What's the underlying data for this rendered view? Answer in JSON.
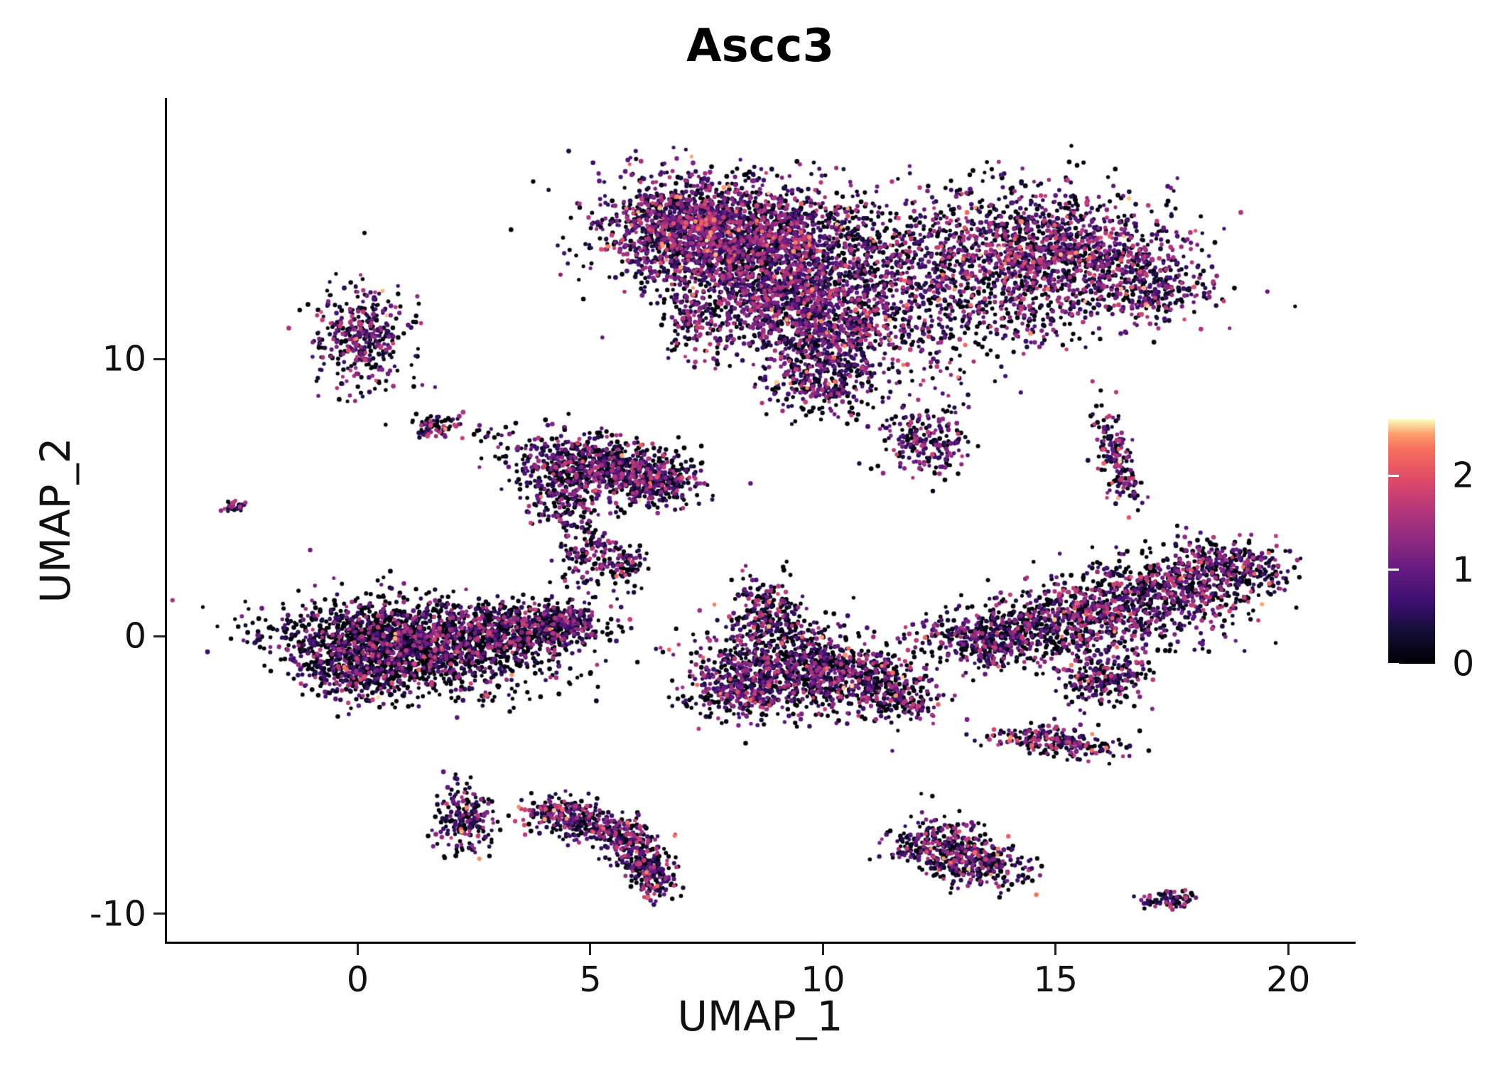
{
  "chart_data": {
    "type": "scatter",
    "title": "Ascc3",
    "xlabel": "UMAP_1",
    "ylabel": "UMAP_2",
    "xlim": [
      -4.1,
      21.4
    ],
    "ylim": [
      -11.0,
      19.4
    ],
    "x_ticks": [
      0,
      5,
      10,
      15,
      20
    ],
    "y_ticks": [
      -10,
      0,
      10
    ],
    "grid": false,
    "legend_position": "right",
    "background_color": "#ffffff",
    "axis_color": "#000000",
    "text_color": "#111111",
    "point_radius": 3,
    "seed": 20240613,
    "colorbar": {
      "colormap": "magma",
      "vmin": 0,
      "vmax": 2.6,
      "tick_labels": [
        "0",
        "1",
        "2"
      ],
      "tick_values": [
        0,
        1,
        2
      ],
      "stops": [
        {
          "t": 0.0,
          "c": "#000004"
        },
        {
          "t": 0.13,
          "c": "#140e36"
        },
        {
          "t": 0.25,
          "c": "#3b0f70"
        },
        {
          "t": 0.38,
          "c": "#641a80"
        },
        {
          "t": 0.5,
          "c": "#8c2981"
        },
        {
          "t": 0.63,
          "c": "#b5367a"
        },
        {
          "t": 0.75,
          "c": "#de4968"
        },
        {
          "t": 0.88,
          "c": "#f7705c"
        },
        {
          "t": 0.94,
          "c": "#fe9f6d"
        },
        {
          "t": 1.0,
          "c": "#fcfdbf"
        }
      ]
    },
    "clusters": [
      {
        "name": "top-main",
        "cx": 8.2,
        "cy": 14.3,
        "sx": 1.35,
        "sy": 1.05,
        "n": 2100,
        "p0": 0.34,
        "hi": 0.05,
        "rot": -15
      },
      {
        "name": "top-left-lobe",
        "cx": 6.9,
        "cy": 15.0,
        "sx": 0.8,
        "sy": 0.7,
        "n": 480,
        "p0": 0.34,
        "hi": 0.04,
        "rot": 0
      },
      {
        "name": "top-lower-mid",
        "cx": 9.3,
        "cy": 12.0,
        "sx": 1.0,
        "sy": 0.95,
        "n": 850,
        "p0": 0.35,
        "hi": 0.05,
        "rot": 0
      },
      {
        "name": "top-tail-upper",
        "cx": 10.2,
        "cy": 10.6,
        "sx": 0.7,
        "sy": 0.8,
        "n": 380,
        "p0": 0.36,
        "hi": 0.04,
        "rot": 0
      },
      {
        "name": "top-tail-lower",
        "cx": 9.8,
        "cy": 9.2,
        "sx": 0.5,
        "sy": 0.6,
        "n": 200,
        "p0": 0.36,
        "hi": 0.04,
        "rot": 0
      },
      {
        "name": "top-bridge-right",
        "cx": 11.2,
        "cy": 13.2,
        "sx": 0.95,
        "sy": 1.15,
        "n": 420,
        "p0": 0.4,
        "hi": 0.04,
        "rot": 0
      },
      {
        "name": "top-left-tail",
        "cx": 7.3,
        "cy": 11.6,
        "sx": 0.4,
        "sy": 0.85,
        "n": 160,
        "p0": 0.36,
        "hi": 0.04,
        "rot": 0
      },
      {
        "name": "mid-right-small",
        "cx": 12.2,
        "cy": 7.0,
        "sx": 0.45,
        "sy": 0.65,
        "n": 210,
        "p0": 0.36,
        "hi": 0.05,
        "rot": 0
      },
      {
        "name": "topright-main",
        "cx": 14.6,
        "cy": 13.9,
        "sx": 1.5,
        "sy": 1.15,
        "n": 1450,
        "p0": 0.38,
        "hi": 0.05,
        "rot": -10
      },
      {
        "name": "topright-east",
        "cx": 16.9,
        "cy": 12.7,
        "sx": 0.6,
        "sy": 0.7,
        "n": 300,
        "p0": 0.36,
        "hi": 0.06,
        "rot": 0
      },
      {
        "name": "topright-south-sparse",
        "cx": 13.6,
        "cy": 11.5,
        "sx": 1.2,
        "sy": 0.65,
        "n": 240,
        "p0": 0.42,
        "hi": 0.04,
        "rot": 0
      },
      {
        "name": "left-upper-blob",
        "cx": 0.1,
        "cy": 10.8,
        "sx": 0.5,
        "sy": 0.95,
        "n": 380,
        "p0": 0.44,
        "hi": 0.03,
        "rot": 0
      },
      {
        "name": "small-left-mid",
        "cx": 1.7,
        "cy": 7.6,
        "sx": 0.28,
        "sy": 0.22,
        "n": 70,
        "p0": 0.4,
        "hi": 0.06,
        "rot": 0
      },
      {
        "name": "small-left-mid-trail",
        "cx": 2.6,
        "cy": 7.3,
        "sx": 0.5,
        "sy": 0.15,
        "n": 18,
        "p0": 0.55,
        "hi": 0.03,
        "rot": 0
      },
      {
        "name": "far-left-dot",
        "cx": -2.65,
        "cy": 4.7,
        "sx": 0.13,
        "sy": 0.13,
        "n": 28,
        "p0": 0.4,
        "hi": 0.1,
        "rot": 0
      },
      {
        "name": "center-main",
        "cx": 5.2,
        "cy": 6.2,
        "sx": 0.95,
        "sy": 0.52,
        "n": 720,
        "p0": 0.5,
        "hi": 0.03,
        "rot": -8
      },
      {
        "name": "center-east",
        "cx": 6.4,
        "cy": 5.5,
        "sx": 0.45,
        "sy": 0.45,
        "n": 260,
        "p0": 0.46,
        "hi": 0.04,
        "rot": 0
      },
      {
        "name": "center-west",
        "cx": 4.3,
        "cy": 5.0,
        "sx": 0.35,
        "sy": 0.55,
        "n": 160,
        "p0": 0.5,
        "hi": 0.03,
        "rot": 0
      },
      {
        "name": "center-tail-upper",
        "cx": 4.9,
        "cy": 3.0,
        "sx": 0.3,
        "sy": 0.65,
        "n": 140,
        "p0": 0.5,
        "hi": 0.03,
        "rot": 0
      },
      {
        "name": "center-tail-lower",
        "cx": 5.7,
        "cy": 2.5,
        "sx": 0.25,
        "sy": 0.4,
        "n": 90,
        "p0": 0.5,
        "hi": 0.03,
        "rot": 0
      },
      {
        "name": "bottomleft-main",
        "cx": 1.1,
        "cy": -0.3,
        "sx": 1.5,
        "sy": 0.78,
        "n": 1900,
        "p0": 0.62,
        "hi": 0.015,
        "rot": -8
      },
      {
        "name": "bottomleft-east",
        "cx": 3.4,
        "cy": 0.3,
        "sx": 0.9,
        "sy": 0.45,
        "n": 520,
        "p0": 0.6,
        "hi": 0.02,
        "rot": 0
      },
      {
        "name": "bottomleft-tip",
        "cx": 4.5,
        "cy": 0.5,
        "sx": 0.3,
        "sy": 0.3,
        "n": 130,
        "p0": 0.5,
        "hi": 0.03,
        "rot": 0
      },
      {
        "name": "bottomleft-south",
        "cx": 0.2,
        "cy": -1.4,
        "sx": 0.7,
        "sy": 0.45,
        "n": 300,
        "p0": 0.62,
        "hi": 0.015,
        "rot": 0
      },
      {
        "name": "bottommid-north",
        "cx": 8.8,
        "cy": 0.7,
        "sx": 0.45,
        "sy": 0.8,
        "n": 260,
        "p0": 0.46,
        "hi": 0.04,
        "rot": 0
      },
      {
        "name": "bottommid-main",
        "cx": 9.3,
        "cy": -1.2,
        "sx": 1.05,
        "sy": 0.8,
        "n": 720,
        "p0": 0.46,
        "hi": 0.05,
        "rot": 0
      },
      {
        "name": "bottommid-west",
        "cx": 8.2,
        "cy": -1.9,
        "sx": 0.55,
        "sy": 0.55,
        "n": 260,
        "p0": 0.44,
        "hi": 0.05,
        "rot": 0
      },
      {
        "name": "bottommid-east",
        "cx": 10.6,
        "cy": -1.4,
        "sx": 0.75,
        "sy": 0.55,
        "n": 320,
        "p0": 0.46,
        "hi": 0.04,
        "rot": 0
      },
      {
        "name": "bottommid-bridge",
        "cx": 11.6,
        "cy": -2.3,
        "sx": 0.5,
        "sy": 0.45,
        "n": 160,
        "p0": 0.5,
        "hi": 0.03,
        "rot": 0
      },
      {
        "name": "right-band-1",
        "cx": 13.6,
        "cy": -0.3,
        "sx": 0.5,
        "sy": 0.5,
        "n": 250,
        "p0": 0.46,
        "hi": 0.04,
        "rot": 0
      },
      {
        "name": "right-band-2",
        "cx": 14.9,
        "cy": 0.2,
        "sx": 0.8,
        "sy": 0.5,
        "n": 370,
        "p0": 0.46,
        "hi": 0.04,
        "rot": -20
      },
      {
        "name": "right-band-3",
        "cx": 16.2,
        "cy": 0.9,
        "sx": 0.95,
        "sy": 0.55,
        "n": 500,
        "p0": 0.46,
        "hi": 0.04,
        "rot": -25
      },
      {
        "name": "right-band-4",
        "cx": 17.6,
        "cy": 1.8,
        "sx": 0.85,
        "sy": 0.55,
        "n": 450,
        "p0": 0.46,
        "hi": 0.04,
        "rot": -25
      },
      {
        "name": "right-band-5",
        "cx": 18.8,
        "cy": 2.6,
        "sx": 0.65,
        "sy": 0.45,
        "n": 290,
        "p0": 0.46,
        "hi": 0.04,
        "rot": -25
      },
      {
        "name": "right-band-south",
        "cx": 16.1,
        "cy": -1.5,
        "sx": 0.5,
        "sy": 0.45,
        "n": 210,
        "p0": 0.48,
        "hi": 0.03,
        "rot": 0
      },
      {
        "name": "right-band-west-sparse",
        "cx": 12.6,
        "cy": 0.1,
        "sx": 0.5,
        "sy": 0.4,
        "n": 90,
        "p0": 0.5,
        "hi": 0.03,
        "rot": 0
      },
      {
        "name": "right-arc",
        "cx": 16.3,
        "cy": 6.5,
        "sx": 0.2,
        "sy": 0.95,
        "n": 170,
        "p0": 0.4,
        "hi": 0.06,
        "rot": 8
      },
      {
        "name": "small-south-right",
        "cx": 15.0,
        "cy": -3.8,
        "sx": 0.75,
        "sy": 0.3,
        "n": 230,
        "p0": 0.46,
        "hi": 0.05,
        "rot": -12
      },
      {
        "name": "bottom-small-left",
        "cx": 2.3,
        "cy": -6.6,
        "sx": 0.3,
        "sy": 0.7,
        "n": 210,
        "p0": 0.46,
        "hi": 0.04,
        "rot": 0
      },
      {
        "name": "crescent-1",
        "cx": 4.3,
        "cy": -6.4,
        "sx": 0.4,
        "sy": 0.3,
        "n": 170,
        "p0": 0.44,
        "hi": 0.05,
        "rot": 0
      },
      {
        "name": "crescent-2",
        "cx": 5.2,
        "cy": -6.9,
        "sx": 0.45,
        "sy": 0.3,
        "n": 190,
        "p0": 0.44,
        "hi": 0.06,
        "rot": -20
      },
      {
        "name": "crescent-3",
        "cx": 6.0,
        "cy": -7.8,
        "sx": 0.3,
        "sy": 0.5,
        "n": 170,
        "p0": 0.44,
        "hi": 0.05,
        "rot": 10
      },
      {
        "name": "crescent-4",
        "cx": 6.4,
        "cy": -8.7,
        "sx": 0.25,
        "sy": 0.4,
        "n": 130,
        "p0": 0.46,
        "hi": 0.05,
        "rot": 0
      },
      {
        "name": "bottom-mid-1",
        "cx": 12.5,
        "cy": -7.5,
        "sx": 0.55,
        "sy": 0.45,
        "n": 270,
        "p0": 0.5,
        "hi": 0.03,
        "rot": -15
      },
      {
        "name": "bottom-mid-2",
        "cx": 13.3,
        "cy": -8.2,
        "sx": 0.55,
        "sy": 0.45,
        "n": 270,
        "p0": 0.48,
        "hi": 0.04,
        "rot": -15
      },
      {
        "name": "bottom-right-dot",
        "cx": 17.4,
        "cy": -9.5,
        "sx": 0.3,
        "sy": 0.15,
        "n": 75,
        "p0": 0.46,
        "hi": 0.05,
        "rot": 0
      },
      {
        "name": "sparse-gap-1",
        "cx": 10.6,
        "cy": 8.6,
        "sx": 0.8,
        "sy": 0.7,
        "n": 60,
        "p0": 0.45,
        "hi": 0.04,
        "rot": 0
      },
      {
        "name": "sparse-gap-2",
        "cx": 12.6,
        "cy": 10.4,
        "sx": 0.8,
        "sy": 1.2,
        "n": 80,
        "p0": 0.45,
        "hi": 0.04,
        "rot": 0
      }
    ]
  }
}
